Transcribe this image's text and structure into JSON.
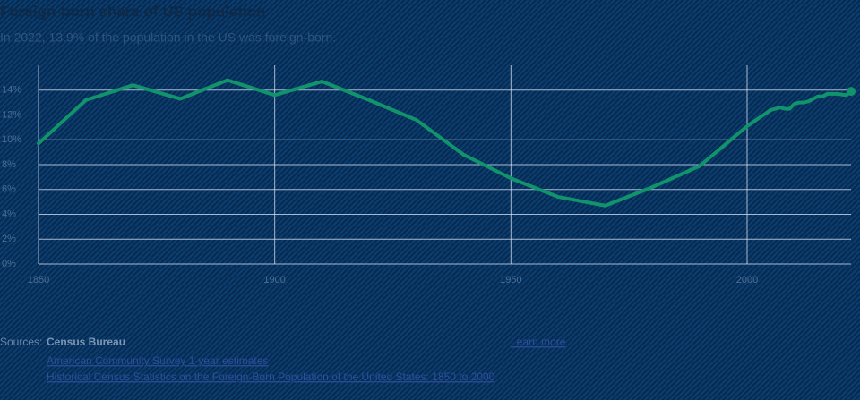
{
  "chart_data": {
    "type": "line",
    "title": "Foreign-born share of US population",
    "subtitle": "In 2022, 13.9% of the population in the US was foreign-born.",
    "x": [
      1850,
      1860,
      1870,
      1880,
      1890,
      1900,
      1910,
      1920,
      1930,
      1940,
      1950,
      1960,
      1970,
      1980,
      1990,
      2000,
      2005,
      2006,
      2007,
      2008,
      2009,
      2010,
      2011,
      2012,
      2013,
      2014,
      2015,
      2016,
      2017,
      2018,
      2019,
      2021,
      2022
    ],
    "series": [
      {
        "name": "Foreign-born share",
        "color": "#11936b",
        "values": [
          9.7,
          13.2,
          14.4,
          13.3,
          14.8,
          13.6,
          14.7,
          13.2,
          11.6,
          8.8,
          6.9,
          5.4,
          4.7,
          6.2,
          7.9,
          11.1,
          12.4,
          12.5,
          12.6,
          12.5,
          12.5,
          12.9,
          13.0,
          13.0,
          13.1,
          13.3,
          13.5,
          13.5,
          13.7,
          13.7,
          13.7,
          13.6,
          13.9
        ]
      }
    ],
    "xlim": [
      1850,
      2022
    ],
    "xticks": [
      1850,
      1900,
      1950,
      2000
    ],
    "ylim": [
      0,
      16
    ],
    "yticks": [
      {
        "value": 0,
        "label": "0%"
      },
      {
        "value": 2,
        "label": "2%"
      },
      {
        "value": 4,
        "label": "4%"
      },
      {
        "value": 6,
        "label": "6%"
      },
      {
        "value": 8,
        "label": "8%"
      },
      {
        "value": 10,
        "label": "10%"
      },
      {
        "value": 12,
        "label": "12%"
      },
      {
        "value": 14,
        "label": "14%"
      }
    ],
    "grid": true
  },
  "sources": {
    "label": "Sources:",
    "name": "Census Bureau",
    "links": [
      "American Community Survey 1-year estimates",
      "Historical Census Statistics on the Foreign-Born Population of the United States: 1850 to 2000"
    ],
    "learn_more": "Learn more"
  }
}
